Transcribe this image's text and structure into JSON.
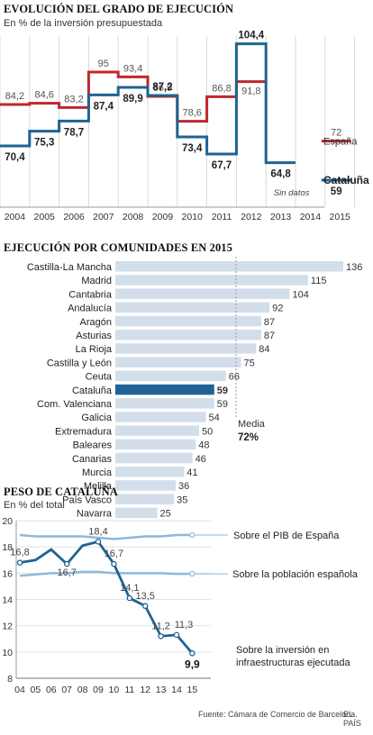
{
  "chart_data": [
    {
      "type": "line",
      "title": "EVOLUCIÓN DEL GRADO DE EJECUCIÓN",
      "subtitle": "En % de la inversión presupuestada",
      "x": [
        "2004",
        "2005",
        "2006",
        "2007",
        "2008",
        "2009",
        "2010",
        "2011",
        "2012",
        "2013",
        "2014",
        "2015"
      ],
      "series": [
        {
          "name": "España",
          "color": "#c0272d",
          "values": [
            84.2,
            84.6,
            83.2,
            95,
            93.4,
            86.9,
            78.6,
            86.8,
            91.8,
            null,
            null,
            72
          ],
          "labels": [
            "84,2",
            "84,6",
            "83,2",
            "95",
            "93,4",
            "86,9",
            "78,6",
            "86,8",
            "91,8",
            "",
            "",
            "72"
          ]
        },
        {
          "name": "Cataluña",
          "color": "#1e6393",
          "values": [
            70.4,
            75.3,
            78.7,
            87.4,
            89.9,
            87.2,
            73.4,
            67.7,
            104.4,
            64.8,
            null,
            59
          ],
          "labels": [
            "70,4",
            "75,3",
            "78,7",
            "87,4",
            "89,9",
            "87,2",
            "73,4",
            "67,7",
            "104,4",
            "64,8",
            "",
            "59"
          ]
        }
      ],
      "annotation": "Sin datos",
      "grid": "vertical"
    },
    {
      "type": "bar",
      "title": "EJECUCIÓN POR COMUNIDADES EN 2015",
      "categories": [
        "Castilla-La Mancha",
        "Madrid",
        "Cantabria",
        "Andalucía",
        "Aragón",
        "Asturias",
        "La Rioja",
        "Castilla y León",
        "Ceuta",
        "Cataluña",
        "Com. Valenciana",
        "Galicia",
        "Extremadura",
        "Baleares",
        "Canarias",
        "Murcia",
        "Melilla",
        "País Vasco",
        "Navarra"
      ],
      "values": [
        136,
        115,
        104,
        92,
        87,
        87,
        84,
        75,
        66,
        59,
        59,
        54,
        50,
        48,
        46,
        41,
        36,
        35,
        25
      ],
      "highlight": "Cataluña",
      "bar_color": "#d3deeb",
      "highlight_color": "#1e6393",
      "mean_label": "Media",
      "mean_value_label": "72%",
      "mean_value": 72
    },
    {
      "type": "line",
      "title": "PESO DE CATALUÑA",
      "subtitle": "En % del total",
      "x": [
        "04",
        "05",
        "06",
        "07",
        "08",
        "09",
        "10",
        "11",
        "12",
        "13",
        "14",
        "15"
      ],
      "ylim": [
        8,
        20
      ],
      "yticks": [
        "8",
        "10",
        "12",
        "14",
        "16",
        "18",
        "20"
      ],
      "series": [
        {
          "name": "Sobre el PIB de España",
          "color": "#8db8dc",
          "values": [
            18.9,
            18.8,
            18.8,
            18.8,
            18.8,
            18.7,
            18.6,
            18.7,
            18.8,
            18.8,
            18.9,
            18.9
          ]
        },
        {
          "name": "Sobre la población española",
          "color": "#8db8dc",
          "values": [
            15.8,
            15.9,
            16.0,
            16.0,
            16.1,
            16.1,
            16.0,
            16.0,
            16.0,
            16.0,
            15.95,
            15.95
          ]
        },
        {
          "name": "Sobre la inversión en infraestructuras ejecutada",
          "color": "#1e6393",
          "values": [
            16.8,
            17.0,
            17.8,
            16.7,
            18.1,
            18.4,
            16.7,
            14.1,
            13.5,
            11.2,
            11.3,
            9.9
          ]
        }
      ],
      "point_labels": [
        {
          "i": 0,
          "text": "16,8"
        },
        {
          "i": 3,
          "text": "16,7"
        },
        {
          "i": 5,
          "text": "18,4"
        },
        {
          "i": 6,
          "text": "16,7"
        },
        {
          "i": 7,
          "text": "14,1"
        },
        {
          "i": 8,
          "text": "13,5"
        },
        {
          "i": 9,
          "text": "11,2"
        },
        {
          "i": 10,
          "text": "11,3"
        },
        {
          "i": 11,
          "text": "9,9"
        }
      ],
      "series_labels": [
        "Sobre el PIB de España",
        "Sobre la población española",
        "Sobre la inversión en",
        "infraestructuras ejecutada"
      ]
    }
  ],
  "footer": {
    "source": "Fuente: Cámara de Comercio de Barcelona.",
    "brand": "EL PAÍS"
  }
}
